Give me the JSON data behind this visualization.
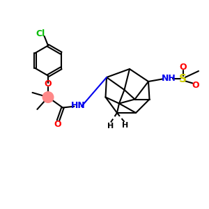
{
  "bg_color": "#ffffff",
  "bond_color": "#000000",
  "bond_lw": 1.5,
  "cl_color": "#00bb00",
  "o_color": "#ff0000",
  "n_color": "#0000ee",
  "s_color": "#cccc00",
  "pink_color": "#ff8888",
  "figsize": [
    3.0,
    3.0
  ],
  "dpi": 100,
  "xlim": [
    0,
    10
  ],
  "ylim": [
    0,
    10
  ]
}
